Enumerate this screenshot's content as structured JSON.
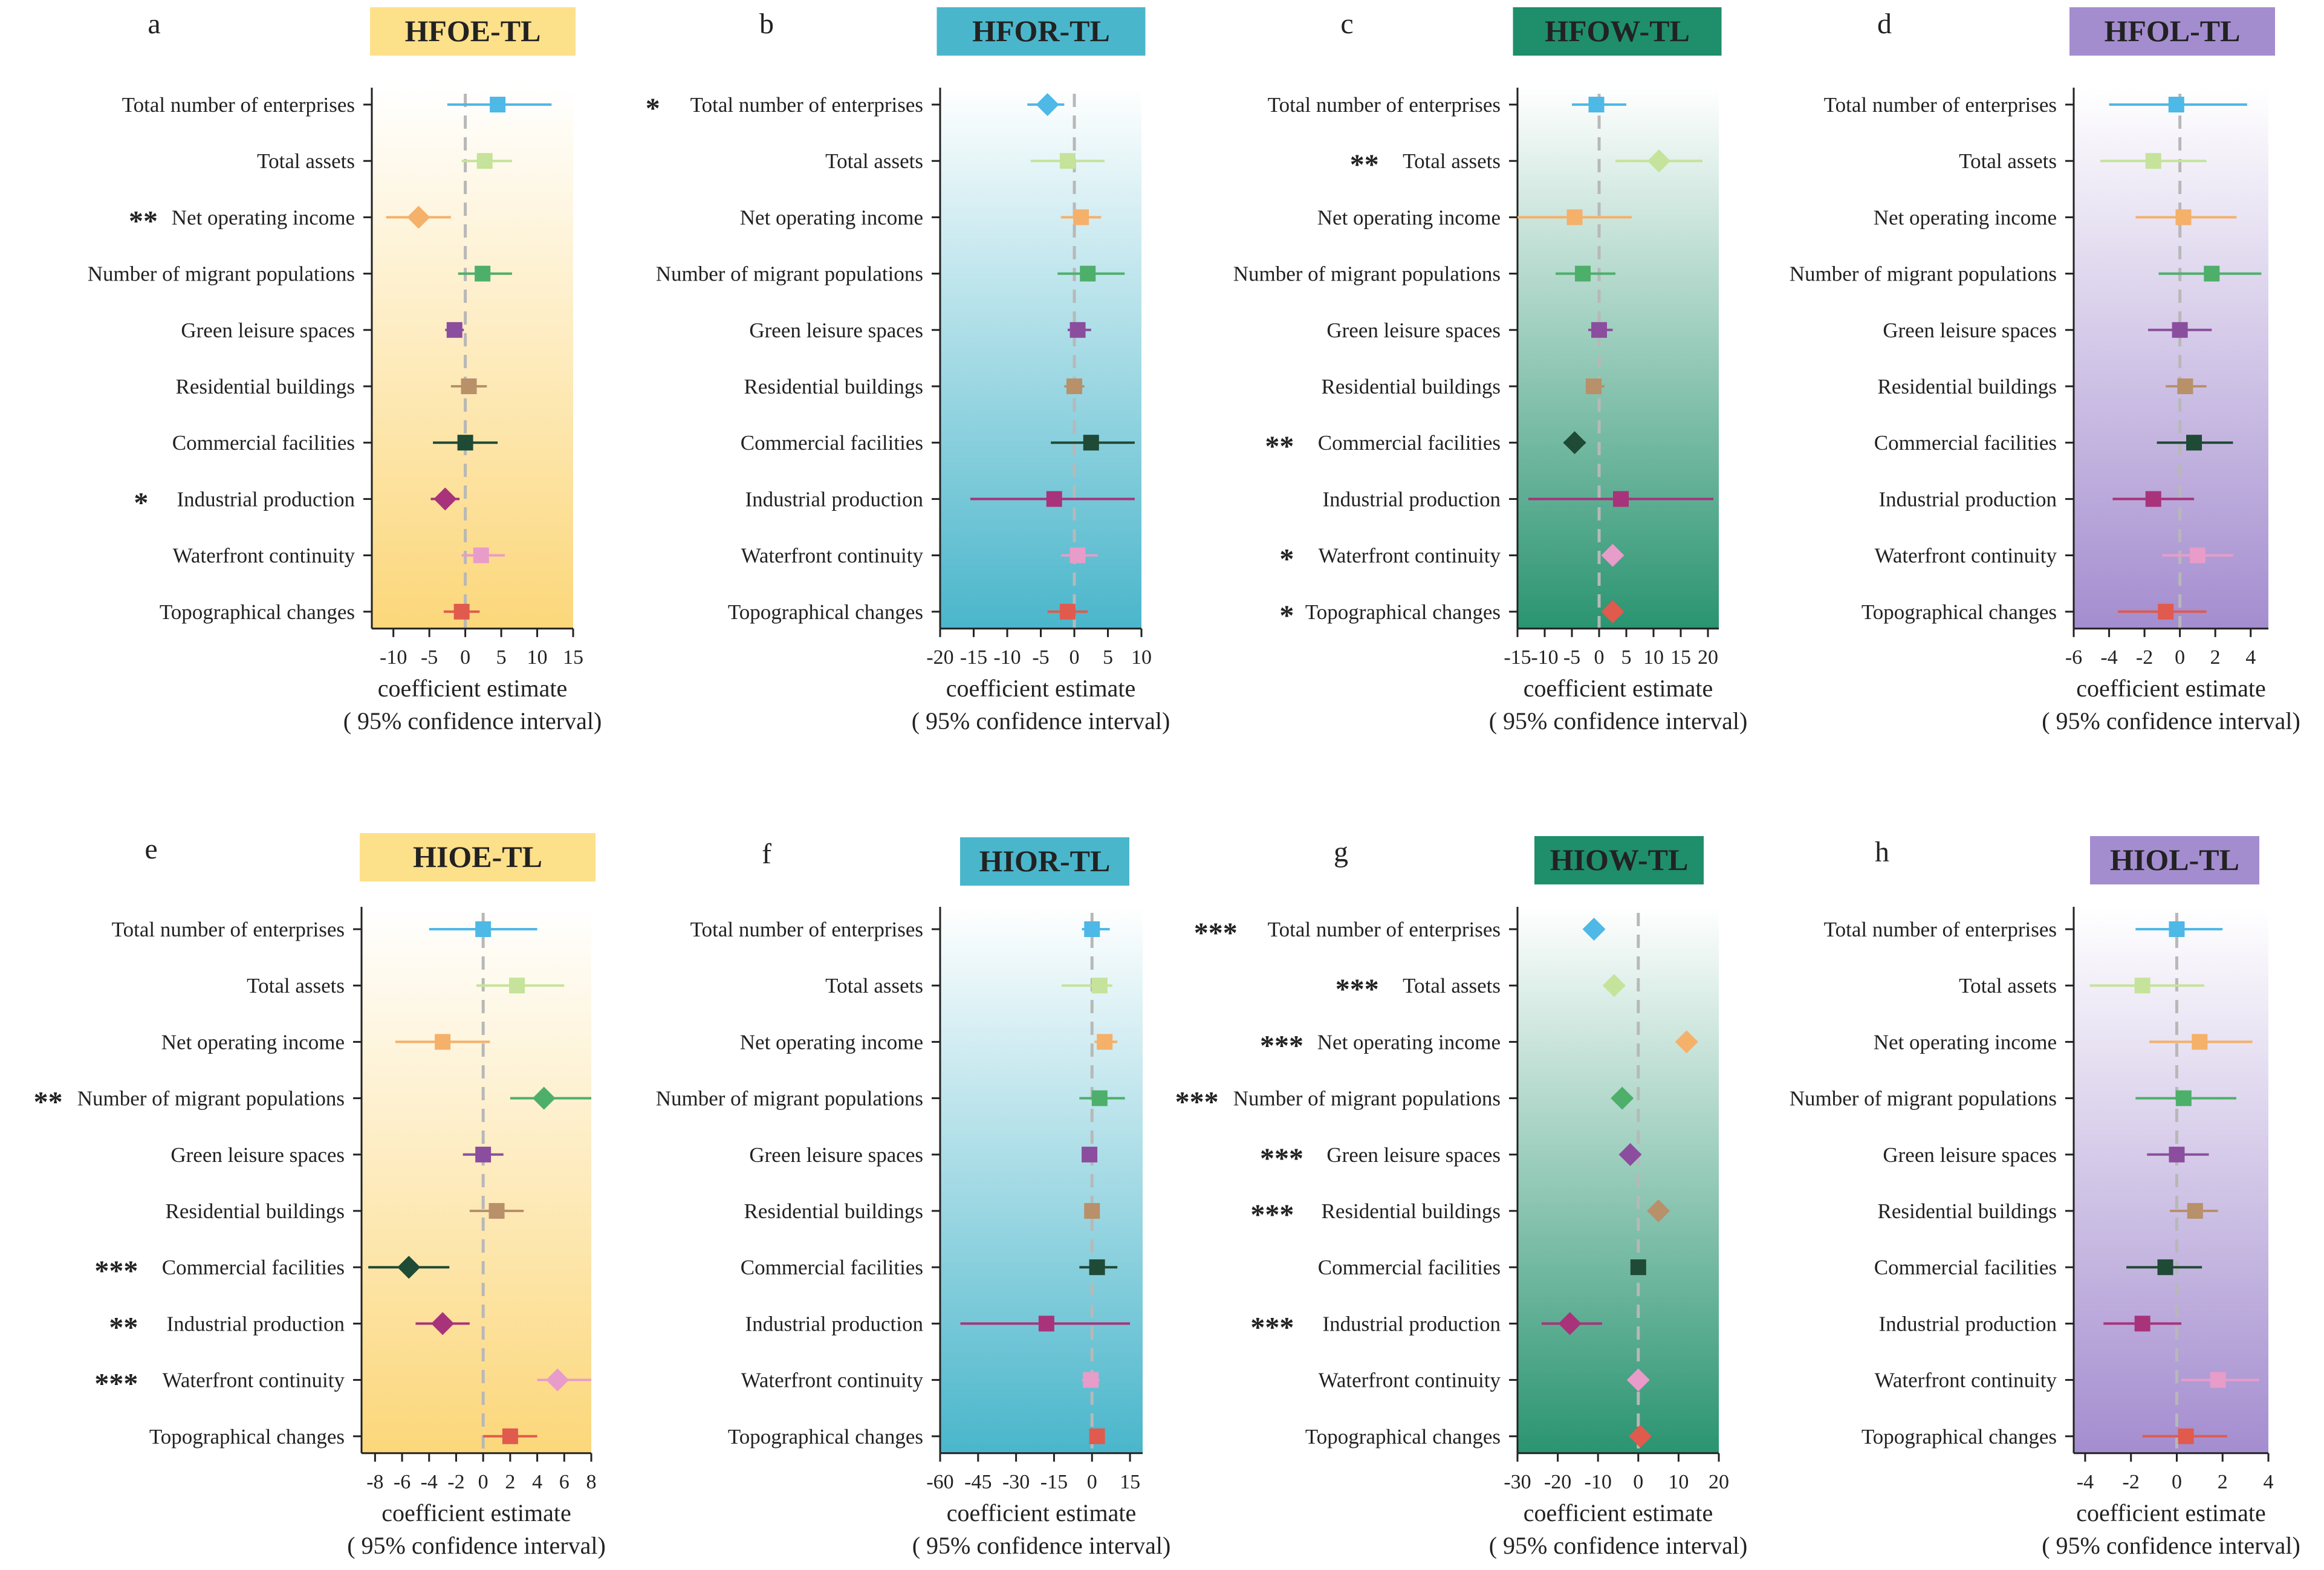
{
  "variables": [
    "Total number of enterprises",
    "Total assets",
    "Net operating income",
    "Number of migrant populations",
    "Green leisure spaces",
    "Residential buildings",
    "Commercial facilities",
    "Industrial production",
    "Waterfront continuity",
    "Topographical changes"
  ],
  "series_colors": [
    "#4EB8E6",
    "#C5E39A",
    "#F5B06A",
    "#4DAF6A",
    "#8B4E9E",
    "#B8906A",
    "#1F4A35",
    "#A8337A",
    "#E89CC9",
    "#E05A4E"
  ],
  "xlabel": "coefficient estimate",
  "xlabel2": "( 95% confidence interval)",
  "chart_data": [
    {
      "type": "forest",
      "letter": "a",
      "title": "HFOE-TL",
      "title_color": "#FDE08A",
      "bg": "#FCD77A",
      "bg_dir": "down",
      "xlim": [
        -13,
        15
      ],
      "xticks": [
        -10,
        -5,
        0,
        5,
        10,
        15
      ],
      "xtick_labels": [
        "-10",
        "-5",
        "0",
        "5",
        "10",
        "15"
      ],
      "estimates": [
        4.5,
        2.7,
        -6.5,
        2.4,
        -1.5,
        0.5,
        0.0,
        -2.8,
        2.2,
        -0.5
      ],
      "ci_low": [
        -2.5,
        -0.5,
        -11,
        -1.0,
        -2.8,
        -2.0,
        -4.5,
        -4.8,
        -0.5,
        -3.0
      ],
      "ci_high": [
        12,
        6.5,
        -2,
        6.5,
        -0.2,
        3.0,
        4.5,
        -0.8,
        5.5,
        2.0
      ],
      "markers": [
        "square",
        "square",
        "diamond",
        "square",
        "square",
        "square",
        "square",
        "diamond",
        "square",
        "square"
      ],
      "stars": [
        "",
        "",
        "**",
        "",
        "",
        "",
        "",
        "*",
        "",
        ""
      ]
    },
    {
      "type": "forest",
      "letter": "b",
      "title": "HFOR-TL",
      "title_color": "#4AB6CB",
      "bg": "#4AB6CB",
      "bg_dir": "down",
      "xlim": [
        -20,
        10
      ],
      "xticks": [
        -20,
        -15,
        -10,
        -5,
        0,
        5,
        10
      ],
      "xtick_labels": [
        "-20",
        "-15",
        "-10",
        "-5",
        "0",
        "5",
        "10"
      ],
      "estimates": [
        -4,
        -1,
        1,
        2,
        0.5,
        0,
        2.5,
        -3,
        0.5,
        -1
      ],
      "ci_low": [
        -7,
        -6.5,
        -2,
        -2.5,
        -1,
        -1.5,
        -3.5,
        -15.5,
        -2,
        -4
      ],
      "ci_high": [
        -1.5,
        4.5,
        4,
        7.5,
        2.5,
        1.5,
        9,
        9,
        3.5,
        2
      ],
      "markers": [
        "diamond",
        "square",
        "square",
        "square",
        "square",
        "square",
        "square",
        "square",
        "square",
        "square"
      ],
      "stars": [
        "*",
        "",
        "",
        "",
        "",
        "",
        "",
        "",
        "",
        ""
      ]
    },
    {
      "type": "forest",
      "letter": "c",
      "title": "HFOW-TL",
      "title_color": "#1F8E6A",
      "bg": "#2A9470",
      "bg_dir": "down",
      "xlim": [
        -15,
        22
      ],
      "xticks": [
        -15,
        -10,
        -5,
        0,
        5,
        10,
        15,
        20
      ],
      "xtick_labels": [
        "-15",
        "-10",
        "-5",
        "0",
        "5",
        "10",
        "15",
        "20"
      ],
      "estimates": [
        -0.5,
        11,
        -4.5,
        -3,
        0,
        -1,
        -4.5,
        4,
        2.5,
        2.5
      ],
      "ci_low": [
        -5,
        3,
        -15,
        -8,
        -2,
        -2.5,
        -6.5,
        -13,
        1,
        1
      ],
      "ci_high": [
        5,
        19,
        6,
        3,
        2.5,
        1,
        -2.5,
        21,
        4,
        4
      ],
      "markers": [
        "square",
        "diamond",
        "square",
        "square",
        "square",
        "square",
        "diamond",
        "square",
        "diamond",
        "diamond"
      ],
      "stars": [
        "",
        "**",
        "",
        "",
        "",
        "",
        "**",
        "",
        "*",
        "*"
      ]
    },
    {
      "type": "forest",
      "letter": "d",
      "title": "HFOL-TL",
      "title_color": "#A48DCF",
      "bg": "#A48DCF",
      "bg_dir": "down",
      "xlim": [
        -6,
        5
      ],
      "xticks": [
        -6,
        -4,
        -2,
        0,
        2,
        4
      ],
      "xtick_labels": [
        "-6",
        "-4",
        "-2",
        "0",
        "2",
        "4"
      ],
      "estimates": [
        -0.2,
        -1.5,
        0.2,
        1.8,
        0,
        0.3,
        0.8,
        -1.5,
        1.0,
        -0.8
      ],
      "ci_low": [
        -4,
        -4.5,
        -2.5,
        -1.2,
        -1.8,
        -0.8,
        -1.3,
        -3.8,
        -1.0,
        -3.5
      ],
      "ci_high": [
        3.8,
        1.5,
        3.2,
        4.6,
        1.8,
        1.5,
        3.0,
        0.8,
        3.0,
        1.5
      ],
      "markers": [
        "square",
        "square",
        "square",
        "square",
        "square",
        "square",
        "square",
        "square",
        "square",
        "square"
      ],
      "stars": [
        "",
        "",
        "",
        "",
        "",
        "",
        "",
        "",
        "",
        ""
      ]
    },
    {
      "type": "forest",
      "letter": "e",
      "title": "HIOE-TL",
      "title_color": "#FDE08A",
      "bg": "#FCD77A",
      "bg_dir": "down",
      "xlim": [
        -9,
        8
      ],
      "xticks": [
        -8,
        -6,
        -4,
        -2,
        0,
        2,
        4,
        6,
        8
      ],
      "xtick_labels": [
        "-8",
        "-6",
        "-4",
        "-2",
        "0",
        "2",
        "4",
        "6",
        "8"
      ],
      "estimates": [
        0,
        2.5,
        -3,
        4.5,
        0,
        1,
        -5.5,
        -3,
        5.5,
        2
      ],
      "ci_low": [
        -4,
        -0.5,
        -6.5,
        2,
        -1.5,
        -1,
        -8.5,
        -5,
        4,
        0
      ],
      "ci_high": [
        4,
        6,
        0.5,
        8,
        1.5,
        3,
        -2.5,
        -1,
        8,
        4
      ],
      "markers": [
        "square",
        "square",
        "square",
        "diamond",
        "square",
        "square",
        "diamond",
        "diamond",
        "diamond",
        "square"
      ],
      "stars": [
        "",
        "",
        "",
        "**",
        "",
        "",
        "***",
        "**",
        "***",
        ""
      ]
    },
    {
      "type": "forest",
      "letter": "f",
      "title": "HIOR-TL",
      "title_color": "#4AB6CB",
      "bg": "#4AB6CB",
      "bg_dir": "down",
      "xlim": [
        -60,
        20
      ],
      "xticks": [
        -60,
        -45,
        -30,
        -15,
        0,
        15
      ],
      "xtick_labels": [
        "-60",
        "-45",
        "-30",
        "-15",
        "0",
        "15"
      ],
      "estimates": [
        0,
        3,
        5,
        3,
        -1,
        0,
        2,
        -18,
        -0.5,
        2
      ],
      "ci_low": [
        -4,
        -12,
        1,
        -5,
        -3,
        -2,
        -5,
        -52,
        -4,
        -1
      ],
      "ci_high": [
        7,
        8,
        10,
        13,
        2,
        3,
        10,
        15,
        3,
        5
      ],
      "markers": [
        "square",
        "square",
        "square",
        "square",
        "square",
        "square",
        "square",
        "square",
        "square",
        "square"
      ],
      "stars": [
        "",
        "",
        "",
        "",
        "",
        "",
        "",
        "",
        "",
        ""
      ]
    },
    {
      "type": "forest",
      "letter": "g",
      "title": "HIOW-TL",
      "title_color": "#1F8E6A",
      "bg": "#2A9470",
      "bg_dir": "up",
      "xlim": [
        -30,
        20
      ],
      "xticks": [
        -30,
        -20,
        -10,
        0,
        10,
        20
      ],
      "xtick_labels": [
        "-30",
        "-20",
        "-10",
        "0",
        "10",
        "20"
      ],
      "estimates": [
        -11,
        -6,
        12,
        -4,
        -2,
        5,
        0,
        -17,
        0,
        0.5
      ],
      "ci_low": [
        -12,
        -7,
        11,
        -5,
        -3,
        4,
        -1,
        -24,
        -1,
        -0.5
      ],
      "ci_high": [
        -10,
        -5,
        13,
        -3,
        -1,
        6,
        1,
        -9,
        1,
        1.5
      ],
      "markers": [
        "diamond",
        "diamond",
        "diamond",
        "diamond",
        "diamond",
        "diamond",
        "square",
        "diamond",
        "diamond",
        "diamond"
      ],
      "stars": [
        "***",
        "***",
        "***",
        "***",
        "***",
        "***",
        "",
        "***",
        "",
        ""
      ]
    },
    {
      "type": "forest",
      "letter": "h",
      "title": "HIOL-TL",
      "title_color": "#A48DCF",
      "bg": "#A48DCF",
      "bg_dir": "down",
      "xlim": [
        -4.5,
        4
      ],
      "xticks": [
        -4,
        -2,
        0,
        2,
        4
      ],
      "xtick_labels": [
        "-4",
        "-2",
        "0",
        "2",
        "4"
      ],
      "estimates": [
        0,
        -1.5,
        1,
        0.3,
        0,
        0.8,
        -0.5,
        -1.5,
        1.8,
        0.4
      ],
      "ci_low": [
        -1.8,
        -3.8,
        -1.2,
        -1.8,
        -1.3,
        -0.3,
        -2.2,
        -3.2,
        0.2,
        -1.5
      ],
      "ci_high": [
        2.0,
        1.2,
        3.3,
        2.6,
        1.4,
        1.8,
        1.1,
        0.2,
        3.6,
        2.2
      ],
      "markers": [
        "square",
        "square",
        "square",
        "square",
        "square",
        "square",
        "square",
        "square",
        "square",
        "square"
      ],
      "stars": [
        "",
        "",
        "",
        "",
        "",
        "",
        "",
        "",
        "",
        ""
      ]
    }
  ]
}
